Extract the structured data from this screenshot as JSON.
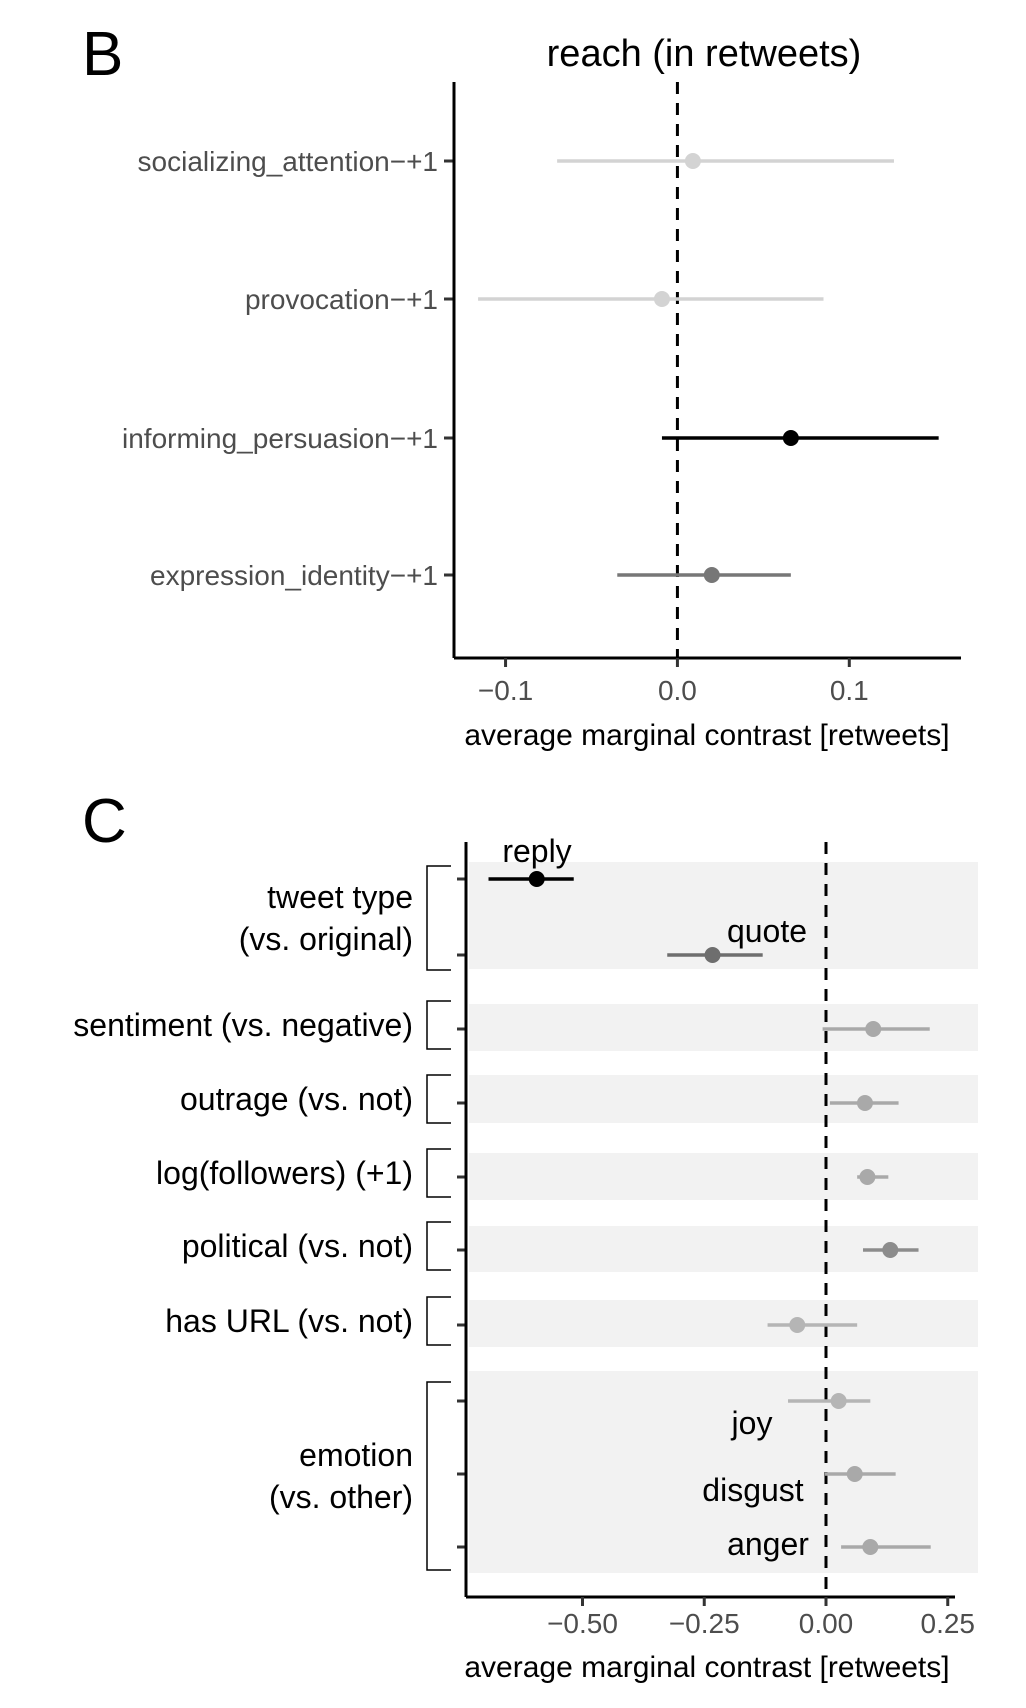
{
  "chart_data": [
    {
      "panel_letter": "B",
      "type": "forest",
      "title": "reach (in retweets)",
      "xlabel": "average marginal contrast [retweets]",
      "xlim": [
        -0.13,
        0.165
      ],
      "xticks": [
        -0.1,
        0.0,
        0.1
      ],
      "xtick_labels": [
        "−0.1",
        "0.0",
        "0.1"
      ],
      "reference_line": 0,
      "rows": [
        {
          "label": "socializing_attention−+1",
          "estimate": 0.009,
          "lower": -0.07,
          "upper": 0.126,
          "color": "#d3d3d3"
        },
        {
          "label": "provocation−+1",
          "estimate": -0.009,
          "lower": -0.116,
          "upper": 0.085,
          "color": "#d3d3d3"
        },
        {
          "label": "informing_persuasion−+1",
          "estimate": 0.066,
          "lower": -0.009,
          "upper": 0.152,
          "color": "#000000"
        },
        {
          "label": "expression_identity−+1",
          "estimate": 0.02,
          "lower": -0.035,
          "upper": 0.066,
          "color": "#777777"
        }
      ]
    },
    {
      "panel_letter": "C",
      "type": "forest",
      "xlabel": "average marginal contrast [retweets]",
      "xlim": [
        -0.738,
        0.257
      ],
      "xticks": [
        -0.5,
        -0.25,
        0.0,
        0.25
      ],
      "xtick_labels": [
        "−0.50",
        "−0.25",
        "0.00",
        "0.25"
      ],
      "reference_line": 0,
      "groups": [
        {
          "label_lines": [
            "tweet type",
            "(vs. original)"
          ],
          "rows": [
            {
              "annotation": "reply",
              "estimate": -0.594,
              "lower": -0.693,
              "upper": -0.518,
              "color": "#000000"
            },
            {
              "annotation": "quote",
              "estimate": -0.233,
              "lower": -0.326,
              "upper": -0.13,
              "color": "#6e6e6e"
            }
          ]
        },
        {
          "label_lines": [
            "sentiment (vs. negative)"
          ],
          "rows": [
            {
              "estimate": 0.097,
              "lower": -0.007,
              "upper": 0.213,
              "color": "#a9a9a9"
            }
          ]
        },
        {
          "label_lines": [
            "outrage (vs. not)"
          ],
          "rows": [
            {
              "estimate": 0.08,
              "lower": 0.008,
              "upper": 0.149,
              "color": "#a9a9a9"
            }
          ]
        },
        {
          "label_lines": [
            "log(followers) (+1)"
          ],
          "rows": [
            {
              "estimate": 0.085,
              "lower": 0.064,
              "upper": 0.128,
              "color": "#a9a9a9"
            }
          ]
        },
        {
          "label_lines": [
            "political (vs. not)"
          ],
          "rows": [
            {
              "estimate": 0.132,
              "lower": 0.076,
              "upper": 0.19,
              "color": "#8c8c8c"
            }
          ]
        },
        {
          "label_lines": [
            "has URL (vs. not)"
          ],
          "rows": [
            {
              "estimate": -0.059,
              "lower": -0.12,
              "upper": 0.064,
              "color": "#b5b5b5"
            }
          ]
        },
        {
          "label_lines": [
            "emotion",
            "(vs. other)"
          ],
          "rows": [
            {
              "annotation": "joy",
              "estimate": 0.026,
              "lower": -0.078,
              "upper": 0.091,
              "color": "#b5b5b5"
            },
            {
              "annotation": "disgust",
              "estimate": 0.059,
              "lower": -0.002,
              "upper": 0.143,
              "color": "#a9a9a9"
            },
            {
              "annotation": "anger",
              "estimate": 0.091,
              "lower": 0.031,
              "upper": 0.215,
              "color": "#a9a9a9"
            }
          ]
        }
      ]
    }
  ]
}
